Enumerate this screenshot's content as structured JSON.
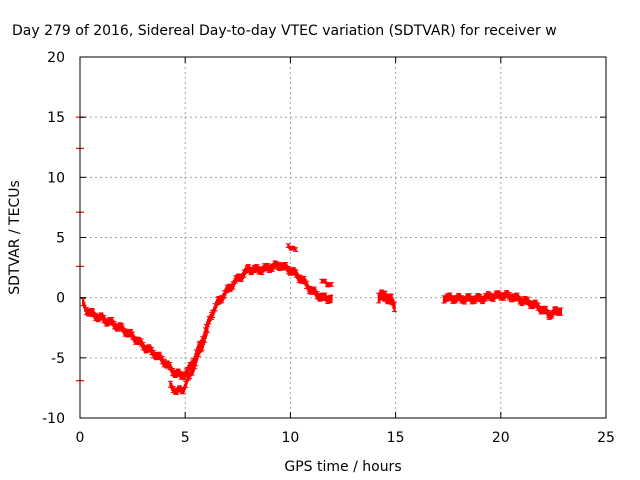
{
  "chart_data": {
    "type": "scatter",
    "title": "Day 279 of 2016, Sidereal Day-to-day VTEC variation (SDTVAR) for receiver w",
    "xlabel": "GPS time / hours",
    "ylabel": "SDTVAR / TECUs",
    "xlim": [
      0,
      25
    ],
    "ylim": [
      -10,
      20
    ],
    "xticks": [
      "0",
      "5",
      "10",
      "15",
      "20",
      "25"
    ],
    "yticks": [
      "-10",
      "-5",
      "0",
      "5",
      "10",
      "15",
      "20"
    ],
    "grid": true,
    "legend": "none",
    "series": [
      {
        "color": "#ff0000",
        "bands": [
          {
            "x": [
              0.15,
              0.3,
              0.6,
              1.0,
              1.5,
              2.0,
              2.5,
              3.0,
              3.5,
              4.0,
              4.4,
              4.8,
              5.1,
              5.4,
              5.7,
              6.0,
              6.3,
              6.6,
              7.0,
              7.4,
              7.8,
              8.0
            ],
            "y": [
              -0.5,
              -1.0,
              -1.4,
              -1.7,
              -2.1,
              -2.6,
              -3.2,
              -4.0,
              -4.6,
              -5.3,
              -6.1,
              -6.5,
              -6.2,
              -5.2,
              -4.0,
              -2.6,
              -1.2,
              -0.3,
              0.6,
              1.4,
              2.0,
              2.3
            ],
            "spread": 0.6
          },
          {
            "x": [
              4.3,
              4.6,
              4.9,
              5.2,
              5.5,
              5.8,
              6.1
            ],
            "y": [
              -7.3,
              -7.8,
              -7.6,
              -6.6,
              -5.4,
              -4.0,
              -2.6
            ],
            "spread": 0.5
          },
          {
            "x": [
              8.0,
              8.5,
              9.0,
              9.5,
              10.0,
              10.5,
              11.0,
              11.5,
              12.0
            ],
            "y": [
              2.4,
              2.3,
              2.5,
              2.7,
              2.3,
              1.6,
              0.6,
              0.0,
              -0.1
            ],
            "spread": 0.6
          },
          {
            "x": [
              9.9,
              10.1,
              10.3
            ],
            "y": [
              4.4,
              4.1,
              3.8
            ],
            "spread": 0.3
          },
          {
            "x": [
              11.5,
              11.8,
              12.0
            ],
            "y": [
              1.3,
              1.2,
              1.0
            ],
            "spread": 0.3
          },
          {
            "x": [
              14.2,
              14.5,
              14.8,
              15.0
            ],
            "y": [
              0.0,
              0.2,
              -0.3,
              -0.8
            ],
            "spread": 0.8
          },
          {
            "x": [
              17.3,
              18.0,
              18.5,
              19.0,
              19.5,
              20.0,
              20.5,
              21.0,
              21.5,
              22.0,
              22.3,
              22.6,
              22.9
            ],
            "y": [
              0.0,
              -0.1,
              -0.1,
              -0.1,
              0.1,
              0.2,
              0.1,
              -0.2,
              -0.5,
              -1.0,
              -1.4,
              -1.2,
              -1.0
            ],
            "spread": 0.6
          }
        ],
        "markers": [
          {
            "x": 0.0,
            "y": 15.0
          },
          {
            "x": 0.0,
            "y": 12.4
          },
          {
            "x": 0.0,
            "y": 7.1
          },
          {
            "x": 0.0,
            "y": 2.6
          },
          {
            "x": 0.0,
            "y": -6.9
          }
        ]
      }
    ]
  }
}
